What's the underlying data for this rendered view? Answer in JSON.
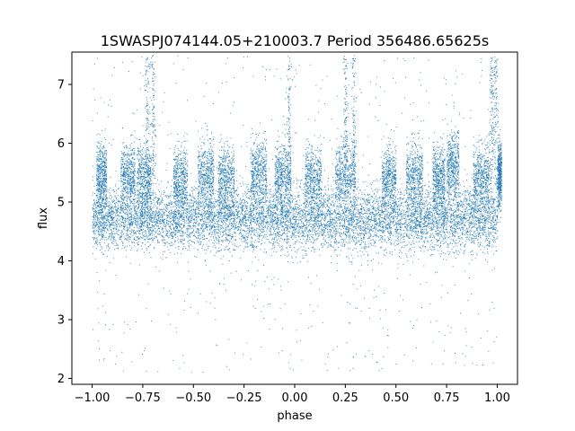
{
  "chart_data": {
    "type": "scatter",
    "title": "1SWASPJ074144.05+210003.7 Period 356486.65625s",
    "xlabel": "phase",
    "ylabel": "flux",
    "xlim": [
      -1.1,
      1.1
    ],
    "ylim": [
      1.9,
      7.55
    ],
    "xticks": [
      -1.0,
      -0.75,
      -0.5,
      -0.25,
      0.0,
      0.25,
      0.5,
      0.75,
      1.0
    ],
    "xtick_labels": [
      "−1.00",
      "−0.75",
      "−0.50",
      "−0.25",
      "0.00",
      "0.25",
      "0.50",
      "0.75",
      "1.00"
    ],
    "yticks": [
      2,
      3,
      4,
      5,
      6,
      7
    ],
    "ytick_labels": [
      "2",
      "3",
      "4",
      "5",
      "6",
      "7"
    ],
    "point_color": "#1f77b4",
    "grid": false,
    "legend": "none",
    "series": [
      {
        "x_range": [
          -1.0,
          1.0
        ],
        "main_band_center": 4.72,
        "main_band_halfwidth": 0.35,
        "upper_band_segments": [
          [
            -0.98,
            -0.93,
            5.45
          ],
          [
            -0.86,
            -0.79,
            5.45
          ],
          [
            -0.78,
            -0.71,
            5.4
          ],
          [
            -0.6,
            -0.53,
            5.4
          ],
          [
            -0.48,
            -0.4,
            5.45
          ],
          [
            -0.38,
            -0.3,
            5.4
          ],
          [
            -0.22,
            -0.14,
            5.5
          ],
          [
            -0.1,
            -0.02,
            5.45
          ],
          [
            0.05,
            0.13,
            5.4
          ],
          [
            0.2,
            0.3,
            5.45
          ],
          [
            0.43,
            0.5,
            5.4
          ],
          [
            0.55,
            0.63,
            5.45
          ],
          [
            0.68,
            0.74,
            5.4
          ],
          [
            0.75,
            0.81,
            5.6
          ],
          [
            0.88,
            0.96,
            5.45
          ],
          [
            1.02,
            1.0,
            5.45
          ]
        ],
        "spikes": [
          -0.73,
          -0.7,
          -0.03,
          0.25,
          0.29,
          0.99,
          0.97
        ]
      }
    ]
  }
}
